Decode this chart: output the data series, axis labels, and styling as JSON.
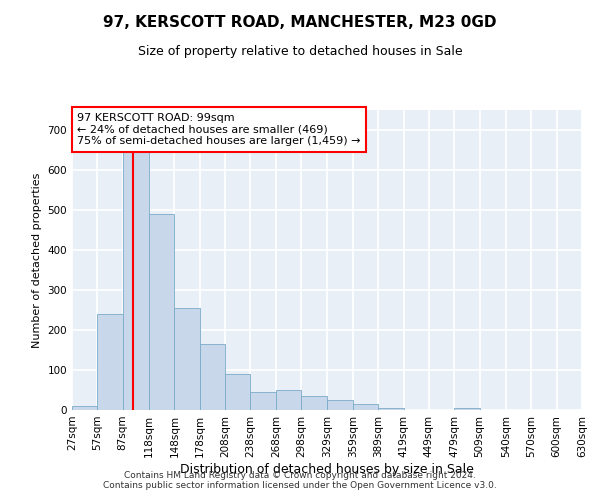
{
  "title": "97, KERSCOTT ROAD, MANCHESTER, M23 0GD",
  "subtitle": "Size of property relative to detached houses in Sale",
  "xlabel": "Distribution of detached houses by size in Sale",
  "ylabel": "Number of detached properties",
  "bar_edges": [
    27,
    57,
    87,
    118,
    148,
    178,
    208,
    238,
    268,
    298,
    329,
    359,
    389,
    419,
    449,
    479,
    509,
    540,
    570,
    600,
    630
  ],
  "bar_heights": [
    10,
    240,
    650,
    490,
    255,
    165,
    90,
    45,
    50,
    35,
    25,
    15,
    5,
    0,
    0,
    5,
    0,
    0,
    0,
    0
  ],
  "bar_color": "#c8d8ea",
  "bar_edgecolor": "#7aaac8",
  "property_line_x": 99,
  "property_line_color": "red",
  "ylim": [
    0,
    750
  ],
  "yticks": [
    0,
    100,
    200,
    300,
    400,
    500,
    600,
    700
  ],
  "annotation_text": "97 KERSCOTT ROAD: 99sqm\n← 24% of detached houses are smaller (469)\n75% of semi-detached houses are larger (1,459) →",
  "annotation_box_color": "white",
  "annotation_box_edgecolor": "red",
  "footer_line1": "Contains HM Land Registry data © Crown copyright and database right 2024.",
  "footer_line2": "Contains public sector information licensed under the Open Government Licence v3.0.",
  "background_color": "#e8eff6",
  "grid_color": "white",
  "title_fontsize": 11,
  "subtitle_fontsize": 9,
  "xlabel_fontsize": 9,
  "ylabel_fontsize": 8,
  "tick_fontsize": 7.5,
  "annotation_fontsize": 8,
  "footer_fontsize": 6.5
}
